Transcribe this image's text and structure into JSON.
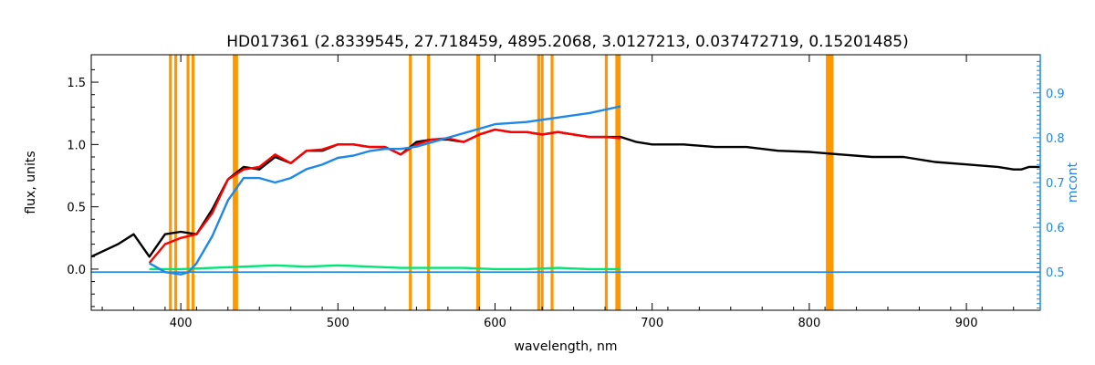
{
  "chart_data": {
    "type": "line",
    "title": "HD017361   (2.8339545, 27.718459, 4895.2068, 3.0127213, 0.037472719, 0.15201485)",
    "xlabel": "wavelength, nm",
    "ylabel": "flux, units",
    "y2label": "mcont",
    "xlim": [
      343,
      947
    ],
    "ylim": [
      -0.33,
      1.72
    ],
    "y2lim": [
      0.415,
      0.985
    ],
    "x_ticks": [
      400,
      500,
      600,
      700,
      800,
      900
    ],
    "y_ticks": [
      0.0,
      0.5,
      1.0,
      1.5
    ],
    "y_tick_labels": [
      "0.0",
      "0.5",
      "1.0",
      "1.5"
    ],
    "y2_ticks": [
      0.5,
      0.6,
      0.7,
      0.8,
      0.9
    ],
    "y2_tick_labels": [
      "0.5",
      "0.6",
      "0.7",
      "0.8",
      "0.9"
    ],
    "grid": false,
    "colors": {
      "observed": "#000000",
      "model": "#ff0000",
      "residual": "#00e676",
      "continuum": "#1e88e5",
      "mask": "#ff9800",
      "right_axis": "#1e88e5"
    },
    "mask_lines_nm": [
      393.4,
      396.8,
      404.6,
      407.8,
      434.0,
      435.5,
      546.1,
      557.7,
      589.0,
      589.6,
      627.8,
      630.0,
      636.3,
      670.8,
      677.5,
      679.0,
      811.5,
      813.0,
      814.5
    ],
    "series": [
      {
        "name": "",
        "role": "observed",
        "x": [
          343,
          360,
          370,
          380,
          390,
          400,
          410,
          420,
          430,
          440,
          450,
          460,
          470,
          480,
          490,
          500,
          510,
          520,
          530,
          540,
          550,
          560,
          570,
          580,
          590,
          600,
          610,
          620,
          630,
          640,
          650,
          660,
          670,
          680,
          690,
          700,
          720,
          740,
          760,
          780,
          800,
          820,
          840,
          860,
          880,
          900,
          920,
          930,
          935,
          940,
          947
        ],
        "y": [
          0.1,
          0.2,
          0.28,
          0.1,
          0.28,
          0.3,
          0.28,
          0.48,
          0.72,
          0.82,
          0.8,
          0.9,
          0.85,
          0.95,
          0.95,
          1.0,
          1.0,
          0.98,
          0.98,
          0.92,
          1.02,
          1.04,
          1.04,
          1.02,
          1.08,
          1.12,
          1.1,
          1.1,
          1.08,
          1.1,
          1.08,
          1.06,
          1.06,
          1.06,
          1.02,
          1.0,
          1.0,
          0.98,
          0.98,
          0.95,
          0.94,
          0.92,
          0.9,
          0.9,
          0.86,
          0.84,
          0.82,
          0.8,
          0.8,
          0.82,
          0.82
        ]
      },
      {
        "name": "",
        "role": "model",
        "x": [
          380,
          390,
          400,
          410,
          420,
          430,
          440,
          450,
          460,
          470,
          480,
          490,
          500,
          510,
          520,
          530,
          540,
          550,
          560,
          570,
          580,
          590,
          600,
          610,
          620,
          630,
          640,
          650,
          660,
          670,
          680
        ],
        "y": [
          0.05,
          0.2,
          0.25,
          0.28,
          0.45,
          0.72,
          0.8,
          0.82,
          0.92,
          0.85,
          0.95,
          0.96,
          1.0,
          1.0,
          0.98,
          0.98,
          0.92,
          1.0,
          1.04,
          1.05,
          1.02,
          1.08,
          1.12,
          1.1,
          1.1,
          1.08,
          1.1,
          1.08,
          1.06,
          1.06,
          1.05
        ]
      },
      {
        "name": "",
        "role": "continuum",
        "x": [
          380,
          390,
          400,
          405,
          410,
          420,
          430,
          440,
          450,
          460,
          470,
          480,
          490,
          500,
          510,
          520,
          530,
          540,
          550,
          560,
          570,
          580,
          590,
          600,
          620,
          640,
          660,
          680
        ],
        "y": [
          0.52,
          0.5,
          0.495,
          0.5,
          0.52,
          0.58,
          0.66,
          0.71,
          0.71,
          0.7,
          0.71,
          0.73,
          0.74,
          0.755,
          0.76,
          0.77,
          0.775,
          0.775,
          0.78,
          0.79,
          0.8,
          0.81,
          0.82,
          0.83,
          0.835,
          0.845,
          0.855,
          0.87
        ]
      },
      {
        "name": "",
        "role": "continuum-flat",
        "x": [
          343,
          947
        ],
        "y": [
          0.5,
          0.5
        ]
      },
      {
        "name": "",
        "role": "residual",
        "x": [
          380,
          400,
          420,
          440,
          460,
          480,
          500,
          520,
          540,
          560,
          580,
          600,
          620,
          640,
          660,
          680
        ],
        "y": [
          0.0,
          0.0,
          0.01,
          0.02,
          0.03,
          0.02,
          0.03,
          0.02,
          0.01,
          0.01,
          0.01,
          0.0,
          0.0,
          0.01,
          0.0,
          0.0
        ]
      }
    ]
  }
}
